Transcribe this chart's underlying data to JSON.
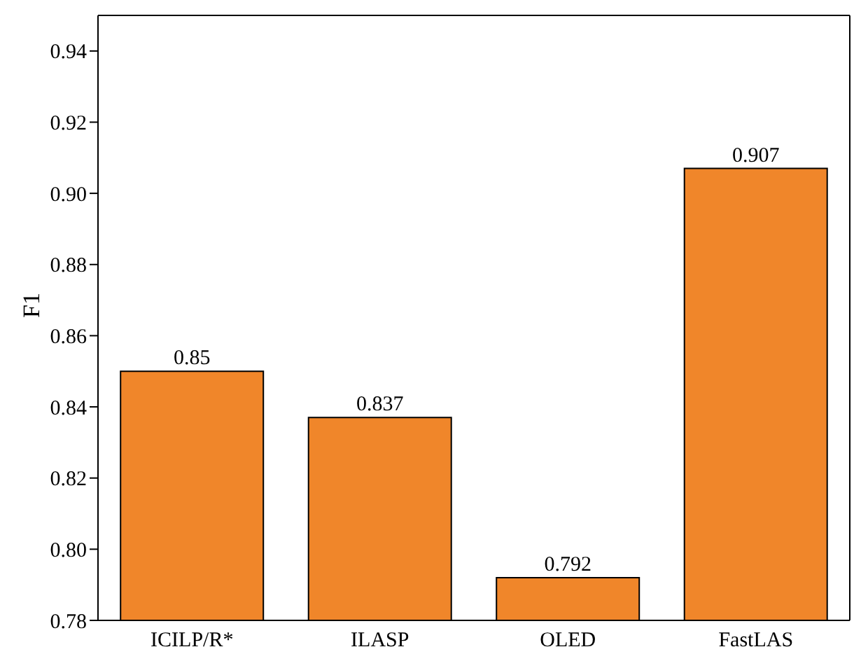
{
  "chart_data": {
    "type": "bar",
    "ylabel": "F1",
    "categories": [
      "ICILP/R*",
      "ILASP",
      "OLED",
      "FastLAS"
    ],
    "values": [
      0.85,
      0.837,
      0.792,
      0.907
    ],
    "color": "#f0862a",
    "ylim": [
      0.78,
      0.95
    ],
    "yticks": [
      {
        "value": 0.78,
        "label": "0.78"
      },
      {
        "value": 0.8,
        "label": "0.80"
      },
      {
        "value": 0.82,
        "label": "0.82"
      },
      {
        "value": 0.84,
        "label": "0.84"
      },
      {
        "value": 0.86,
        "label": "0.86"
      },
      {
        "value": 0.88,
        "label": "0.88"
      },
      {
        "value": 0.9,
        "label": "0.90"
      },
      {
        "value": 0.92,
        "label": "0.92"
      },
      {
        "value": 0.94,
        "label": "0.94"
      }
    ],
    "data_labels": true,
    "grid": false,
    "legend": false
  }
}
